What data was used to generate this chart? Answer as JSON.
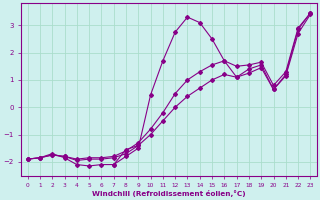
{
  "xlabel": "Windchill (Refroidissement éolien,°C)",
  "background_color": "#cff0ee",
  "grid_color": "#aaddcc",
  "line_color": "#880088",
  "xlim": [
    -0.5,
    23.5
  ],
  "ylim": [
    -2.5,
    3.8
  ],
  "xticks": [
    0,
    1,
    2,
    3,
    4,
    5,
    6,
    7,
    8,
    9,
    10,
    11,
    12,
    13,
    14,
    15,
    16,
    17,
    18,
    19,
    20,
    21,
    22,
    23
  ],
  "yticks": [
    -2,
    -1,
    0,
    1,
    2,
    3
  ],
  "lines": [
    {
      "x": [
        0,
        1,
        2,
        3,
        4,
        5,
        6,
        7,
        8,
        9,
        10,
        11,
        12,
        13,
        14,
        15,
        16,
        17,
        18,
        19,
        20,
        21,
        22,
        23
      ],
      "y": [
        -1.9,
        -1.85,
        -1.7,
        -1.85,
        -2.1,
        -2.15,
        -2.1,
        -2.1,
        -1.8,
        -1.5,
        0.45,
        1.7,
        2.75,
        3.3,
        3.1,
        2.5,
        1.7,
        1.1,
        1.4,
        1.55,
        0.65,
        1.2,
        2.85,
        3.45
      ]
    },
    {
      "x": [
        0,
        1,
        2,
        3,
        4,
        5,
        6,
        7,
        8,
        9,
        10,
        11,
        12,
        13,
        14,
        15,
        16,
        17,
        18,
        19,
        20,
        21,
        22,
        23
      ],
      "y": [
        -1.9,
        -1.85,
        -1.75,
        -1.8,
        -1.9,
        -1.85,
        -1.85,
        -1.8,
        -1.6,
        -1.3,
        -0.8,
        -0.2,
        0.5,
        1.0,
        1.3,
        1.55,
        1.7,
        1.5,
        1.55,
        1.65,
        0.8,
        1.3,
        2.9,
        3.45
      ]
    },
    {
      "x": [
        0,
        1,
        2,
        3,
        4,
        5,
        6,
        7,
        8,
        9,
        10,
        11,
        12,
        13,
        14,
        15,
        16,
        17,
        18,
        19,
        20,
        21,
        22,
        23
      ],
      "y": [
        -1.9,
        -1.85,
        -1.75,
        -1.8,
        -1.95,
        -1.9,
        -1.9,
        -1.85,
        -1.7,
        -1.4,
        -1.0,
        -0.5,
        0.0,
        0.4,
        0.7,
        1.0,
        1.2,
        1.1,
        1.25,
        1.45,
        0.65,
        1.15,
        2.7,
        3.4
      ]
    },
    {
      "x": [
        7,
        8,
        9
      ],
      "y": [
        -2.1,
        -1.55,
        -1.4
      ]
    }
  ]
}
